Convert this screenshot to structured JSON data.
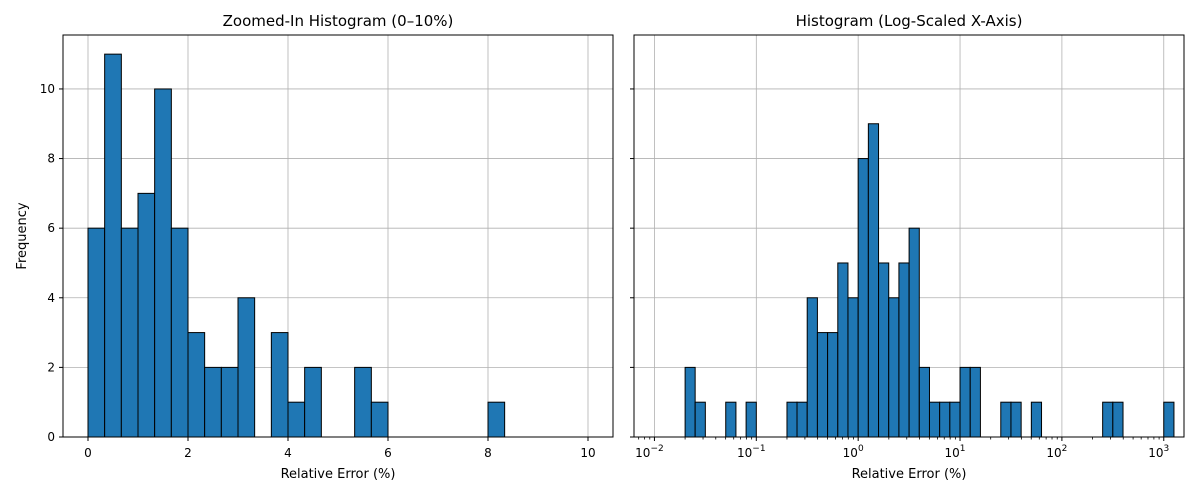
{
  "chart_data": [
    {
      "type": "bar",
      "title": "Zoomed-In Histogram (0–10%)",
      "xlabel": "Relative Error (%)",
      "ylabel": "Frequency",
      "xlim": [
        -0.5,
        10.5
      ],
      "ylim": [
        0,
        11.55
      ],
      "xscale": "linear",
      "grid": true,
      "x_ticks": [
        0,
        2,
        4,
        6,
        8,
        10
      ],
      "x_tick_labels": [
        "0",
        "2",
        "4",
        "6",
        "8",
        "10"
      ],
      "y_ticks": [
        0,
        2,
        4,
        6,
        8,
        10
      ],
      "y_tick_labels": [
        "0",
        "2",
        "4",
        "6",
        "8",
        "10"
      ],
      "bin_edges": [
        0,
        0.333,
        0.667,
        1.0,
        1.333,
        1.667,
        2.0,
        2.333,
        2.667,
        3.0,
        3.333,
        3.667,
        4.0,
        4.333,
        4.667,
        5.0,
        5.333,
        5.667,
        6.0,
        6.333,
        6.667,
        7.0,
        7.333,
        7.667,
        8.0,
        8.333,
        8.667,
        9.0,
        9.333,
        9.667,
        10.0
      ],
      "values": [
        6,
        11,
        6,
        7,
        10,
        6,
        3,
        2,
        2,
        4,
        0,
        3,
        1,
        2,
        0,
        0,
        2,
        1,
        0,
        0,
        0,
        0,
        0,
        0,
        1,
        0,
        0,
        0,
        0,
        0
      ],
      "color": "#1f77b4",
      "edgecolor": "#000000"
    },
    {
      "type": "bar",
      "title": "Histogram (Log-Scaled X-Axis)",
      "xlabel": "Relative Error (%)",
      "ylabel": "",
      "xlim": [
        0.0063,
        1580
      ],
      "ylim": [
        0,
        11.55
      ],
      "xscale": "log",
      "grid": true,
      "x_ticks": [
        0.01,
        0.1,
        1,
        10,
        100,
        1000
      ],
      "x_tick_labels": [
        {
          "base": "10",
          "exp": "−2"
        },
        {
          "base": "10",
          "exp": "−1"
        },
        {
          "base": "10",
          "exp": "0"
        },
        {
          "base": "10",
          "exp": "1"
        },
        {
          "base": "10",
          "exp": "2"
        },
        {
          "base": "10",
          "exp": "3"
        }
      ],
      "y_ticks": [
        0,
        2,
        4,
        6,
        8,
        10
      ],
      "y_tick_labels": [
        "",
        "",
        "",
        "",
        "",
        ""
      ],
      "bin_edges": [
        0.02,
        0.0251,
        0.0316,
        0.0398,
        0.0501,
        0.0631,
        0.0794,
        0.1,
        0.126,
        0.158,
        0.2,
        0.251,
        0.316,
        0.398,
        0.501,
        0.631,
        0.794,
        1.0,
        1.259,
        1.585,
        1.995,
        2.512,
        3.162,
        3.981,
        5.012,
        6.31,
        7.943,
        10.0,
        12.59,
        15.85,
        19.95,
        25.12,
        31.62,
        39.81,
        50.12,
        63.1,
        79.43,
        100,
        125.9,
        158.5,
        199.5,
        251.2,
        316.2,
        398.1,
        501.2,
        631,
        794.3,
        1000,
        1259
      ],
      "values": [
        2,
        1,
        0,
        0,
        1,
        0,
        1,
        0,
        0,
        0,
        1,
        1,
        4,
        3,
        3,
        5,
        4,
        8,
        9,
        5,
        4,
        5,
        6,
        2,
        1,
        1,
        1,
        2,
        2,
        0,
        0,
        1,
        1,
        0,
        1,
        0,
        0,
        0,
        0,
        0,
        0,
        1,
        1,
        0,
        0,
        0,
        0,
        1
      ],
      "color": "#1f77b4",
      "edgecolor": "#000000"
    }
  ]
}
